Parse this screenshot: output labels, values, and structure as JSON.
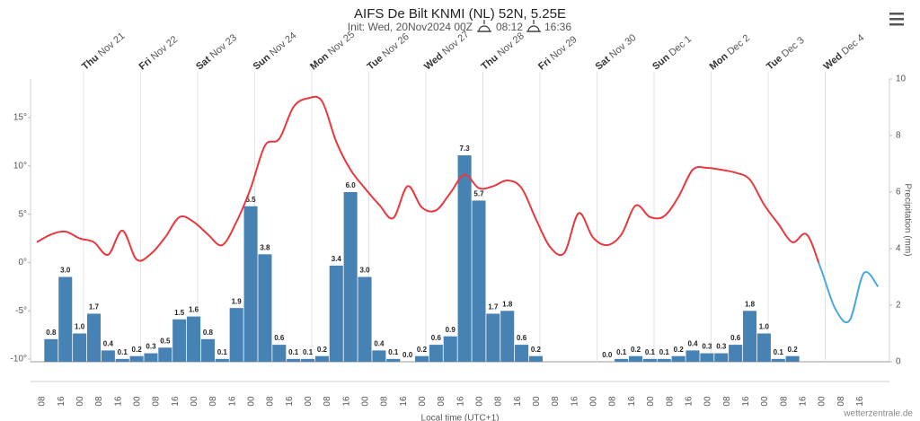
{
  "chart_data": {
    "type": "bar",
    "title": "AIFS De Bilt KNMI (NL) 52N, 5.25E",
    "subtitle": "Init: Wed, 20Nov2024 00Z",
    "sunrise": "08:12",
    "sunset": "16:36",
    "categories": [
      null,
      null,
      null,
      null,
      null,
      null,
      null,
      null,
      null,
      null,
      null,
      null,
      null,
      null,
      null,
      null,
      null,
      null,
      null,
      null,
      null,
      null,
      null,
      null,
      null,
      null,
      null,
      null,
      null,
      null,
      null,
      null,
      null,
      null,
      null,
      null,
      null,
      null,
      null,
      null,
      null,
      null,
      null,
      null,
      null,
      null,
      null,
      null,
      null,
      null,
      null,
      null,
      null,
      null,
      null,
      null,
      null,
      null,
      null,
      null
    ],
    "series": [
      {
        "type": "bar",
        "axis": "y2",
        "color": "#4682b4",
        "values": [
          null,
          0.8,
          3.0,
          1.0,
          1.7,
          0.4,
          0.1,
          0.2,
          0.3,
          0.5,
          1.5,
          1.6,
          0.8,
          0.1,
          1.9,
          5.5,
          3.8,
          0.6,
          0.1,
          0.1,
          0.2,
          3.4,
          6.0,
          3.0,
          0.4,
          0.1,
          0.0,
          0.2,
          0.6,
          0.9,
          7.3,
          5.7,
          1.7,
          1.8,
          0.6,
          0.2,
          null,
          null,
          null,
          null,
          0.0,
          0.1,
          0.2,
          0.1,
          0.1,
          0.2,
          0.4,
          0.3,
          0.3,
          0.6,
          1.8,
          1.0,
          0.1,
          0.2,
          null,
          null,
          null,
          null,
          null,
          null
        ],
        "value_labels": [
          null,
          "0.8",
          "3.0",
          "1.0",
          "1.7",
          "0.4",
          "0.1",
          "0.2",
          "0.3",
          "0.5",
          "1.5",
          "1.6",
          "0.8",
          "0.1",
          "1.9",
          "5.5",
          "3.8",
          "0.6",
          "0.1",
          "0.1",
          "0.2",
          "3.4",
          "6.0",
          "3.0",
          "0.4",
          "0.1",
          "0.0",
          "0.2",
          "0.6",
          "0.9",
          "7.3",
          "5.7",
          "1.7",
          "1.8",
          "0.6",
          "0.2",
          null,
          null,
          null,
          null,
          "0.0",
          "0.1",
          "0.2",
          "0.1",
          "0.1",
          "0.2",
          "0.4",
          "0.3",
          "0.3",
          "0.6",
          "1.8",
          "1.0",
          "0.1",
          "0.2",
          null,
          null,
          null,
          null,
          null,
          null
        ]
      },
      {
        "type": "line",
        "color": "#e8383d",
        "negative_color": "#4aa8de",
        "values": [
          2.1,
          2.9,
          3.2,
          2.5,
          2.1,
          0.8,
          3.3,
          0.3,
          0.9,
          2.6,
          4.7,
          4.2,
          2.9,
          1.8,
          4.2,
          7.7,
          12.1,
          12.8,
          16.1,
          17.0,
          16.7,
          12.5,
          9.6,
          7.7,
          6.0,
          4.6,
          7.9,
          5.7,
          5.4,
          7.2,
          9.1,
          7.7,
          7.9,
          8.5,
          7.7,
          4.5,
          1.6,
          1.0,
          5.1,
          2.6,
          1.8,
          2.9,
          5.9,
          4.7,
          4.8,
          6.8,
          9.6,
          9.8,
          9.6,
          9.3,
          8.6,
          6.0,
          4.0,
          2.1,
          2.9,
          -0.7,
          -4.8,
          -6.0,
          -1.1,
          -2.5
        ]
      }
    ],
    "ylim": [
      -10,
      19
    ],
    "yticks": [
      {
        "value": -10,
        "label": "-10°"
      },
      {
        "value": -5,
        "label": "-5°"
      },
      {
        "value": 0,
        "label": "0°"
      },
      {
        "value": 5,
        "label": "5°"
      },
      {
        "value": 10,
        "label": "10°"
      },
      {
        "value": 15,
        "label": "15°"
      }
    ],
    "y2lim": [
      0,
      10
    ],
    "y2ticks": [
      0,
      2,
      4,
      6,
      8,
      10
    ],
    "y2_label": "Precipitation (mm)",
    "x_label": "Local time (UTC+1)",
    "day_ticks": [
      {
        "weekday": "Thu",
        "date": "Nov 21"
      },
      {
        "weekday": "Fri",
        "date": "Nov 22"
      },
      {
        "weekday": "Sat",
        "date": "Nov 23"
      },
      {
        "weekday": "Sun",
        "date": "Nov 24"
      },
      {
        "weekday": "Mon",
        "date": "Nov 25"
      },
      {
        "weekday": "Tue",
        "date": "Nov 26"
      },
      {
        "weekday": "Wed",
        "date": "Nov 27"
      },
      {
        "weekday": "Thu",
        "date": "Nov 28"
      },
      {
        "weekday": "Fri",
        "date": "Nov 29"
      },
      {
        "weekday": "Sat",
        "date": "Nov 30"
      },
      {
        "weekday": "Sun",
        "date": "Dec 1"
      },
      {
        "weekday": "Mon",
        "date": "Dec 2"
      },
      {
        "weekday": "Tue",
        "date": "Dec 3"
      },
      {
        "weekday": "Wed",
        "date": "Dec 4"
      }
    ],
    "hour_ticks": [
      "08",
      "16",
      "00",
      "08",
      "16",
      "00",
      "08",
      "16",
      "00",
      "08",
      "16",
      "00",
      "08",
      "16",
      "00",
      "08",
      "16",
      "00",
      "08",
      "16",
      "00",
      "08",
      "16",
      "00",
      "08",
      "16",
      "00",
      "08",
      "16",
      "00",
      "08",
      "16",
      "00",
      "08",
      "16",
      "00",
      "08",
      "16",
      "00",
      "08",
      "16",
      "00",
      "08",
      "16"
    ],
    "credit": "wetterzentrale.de"
  }
}
